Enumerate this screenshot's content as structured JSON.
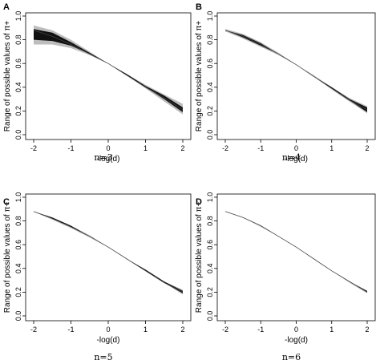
{
  "chart_data": [
    {
      "type": "area",
      "panel": "A",
      "caption": "n=3",
      "xlabel": "-log(d)",
      "ylabel": "Range of possible values of π+",
      "xlim": [
        -2,
        2
      ],
      "ylim": [
        0,
        1
      ],
      "xticks": [
        "-2",
        "-1",
        "0",
        "1",
        "2"
      ],
      "yticks": [
        "0.0",
        "0.2",
        "0.4",
        "0.6",
        "0.8",
        "1.0"
      ],
      "x": [
        -2,
        -1.5,
        -1,
        -0.5,
        0,
        0.5,
        1,
        1.5,
        2
      ],
      "center": [
        0.88,
        0.83,
        0.76,
        0.68,
        0.6,
        0.5,
        0.4,
        0.31,
        0.21
      ],
      "outer": {
        "lower": [
          0.76,
          0.76,
          0.73,
          0.67,
          0.6,
          0.5,
          0.39,
          0.28,
          0.17
        ],
        "upper": [
          0.92,
          0.88,
          0.8,
          0.7,
          0.6,
          0.51,
          0.42,
          0.34,
          0.26
        ]
      },
      "inner": {
        "lower": [
          0.8,
          0.79,
          0.75,
          0.68,
          0.6,
          0.5,
          0.4,
          0.3,
          0.19
        ],
        "upper": [
          0.89,
          0.86,
          0.78,
          0.69,
          0.6,
          0.51,
          0.41,
          0.33,
          0.23
        ]
      }
    },
    {
      "type": "area",
      "panel": "B",
      "caption": "n=4",
      "xlabel": "-log(d)",
      "ylabel": "Range of possible values of π+",
      "xlim": [
        -2,
        2
      ],
      "ylim": [
        0,
        1
      ],
      "xticks": [
        "-2",
        "-1",
        "0",
        "1",
        "2"
      ],
      "yticks": [
        "0.0",
        "0.2",
        "0.4",
        "0.6",
        "0.8",
        "1.0"
      ],
      "x": [
        -2,
        -1.5,
        -1,
        -0.5,
        0,
        0.5,
        1,
        1.5,
        2
      ],
      "center": [
        0.88,
        0.83,
        0.76,
        0.68,
        0.59,
        0.49,
        0.39,
        0.29,
        0.21
      ],
      "outer": {
        "lower": [
          0.87,
          0.81,
          0.74,
          0.67,
          0.59,
          0.49,
          0.38,
          0.28,
          0.18
        ],
        "upper": [
          0.89,
          0.85,
          0.78,
          0.69,
          0.59,
          0.5,
          0.4,
          0.31,
          0.24
        ]
      },
      "inner": {
        "lower": [
          0.88,
          0.82,
          0.75,
          0.68,
          0.59,
          0.49,
          0.39,
          0.29,
          0.19
        ],
        "upper": [
          0.88,
          0.84,
          0.77,
          0.68,
          0.59,
          0.49,
          0.4,
          0.3,
          0.23
        ]
      }
    },
    {
      "type": "area",
      "panel": "C",
      "caption": "n=5",
      "xlabel": "-log(d)",
      "ylabel": "Range of possible values of π+",
      "xlim": [
        -2,
        2
      ],
      "ylim": [
        0,
        1
      ],
      "xticks": [
        "-2",
        "-1",
        "0",
        "1",
        "2"
      ],
      "yticks": [
        "0.0",
        "0.2",
        "0.4",
        "0.6",
        "0.8",
        "1.0"
      ],
      "x": [
        -2,
        -1.5,
        -1,
        -0.5,
        0,
        0.5,
        1,
        1.5,
        2
      ],
      "center": [
        0.88,
        0.82,
        0.75,
        0.67,
        0.58,
        0.48,
        0.38,
        0.28,
        0.2
      ],
      "outer": {
        "lower": [
          0.88,
          0.81,
          0.74,
          0.66,
          0.58,
          0.48,
          0.38,
          0.28,
          0.18
        ],
        "upper": [
          0.88,
          0.83,
          0.76,
          0.68,
          0.58,
          0.48,
          0.39,
          0.29,
          0.22
        ]
      },
      "inner": {
        "lower": [
          0.88,
          0.82,
          0.75,
          0.67,
          0.58,
          0.48,
          0.38,
          0.28,
          0.19
        ],
        "upper": [
          0.88,
          0.83,
          0.76,
          0.67,
          0.58,
          0.48,
          0.39,
          0.29,
          0.21
        ]
      }
    },
    {
      "type": "area",
      "panel": "D",
      "caption": "n=6",
      "xlabel": "-log(d)",
      "ylabel": "Range of possible values of π+",
      "xlim": [
        -2,
        2
      ],
      "ylim": [
        0,
        1
      ],
      "xticks": [
        "-2",
        "-1",
        "0",
        "1",
        "2"
      ],
      "yticks": [
        "0.0",
        "0.2",
        "0.4",
        "0.6",
        "0.8",
        "1.0"
      ],
      "x": [
        -2,
        -1.5,
        -1,
        -0.5,
        0,
        0.5,
        1,
        1.5,
        2
      ],
      "center": [
        0.88,
        0.83,
        0.76,
        0.67,
        0.58,
        0.48,
        0.38,
        0.29,
        0.2
      ],
      "outer": {
        "lower": [
          0.88,
          0.83,
          0.75,
          0.67,
          0.58,
          0.48,
          0.38,
          0.28,
          0.19
        ],
        "upper": [
          0.88,
          0.83,
          0.76,
          0.67,
          0.58,
          0.48,
          0.38,
          0.29,
          0.21
        ]
      },
      "inner": {
        "lower": [
          0.88,
          0.83,
          0.76,
          0.67,
          0.58,
          0.48,
          0.38,
          0.29,
          0.2
        ],
        "upper": [
          0.88,
          0.83,
          0.76,
          0.67,
          0.58,
          0.48,
          0.38,
          0.29,
          0.21
        ]
      }
    }
  ],
  "colors": {
    "outer_band": "#bdbdbd",
    "inner_band": "#111111",
    "line": "#444444"
  }
}
